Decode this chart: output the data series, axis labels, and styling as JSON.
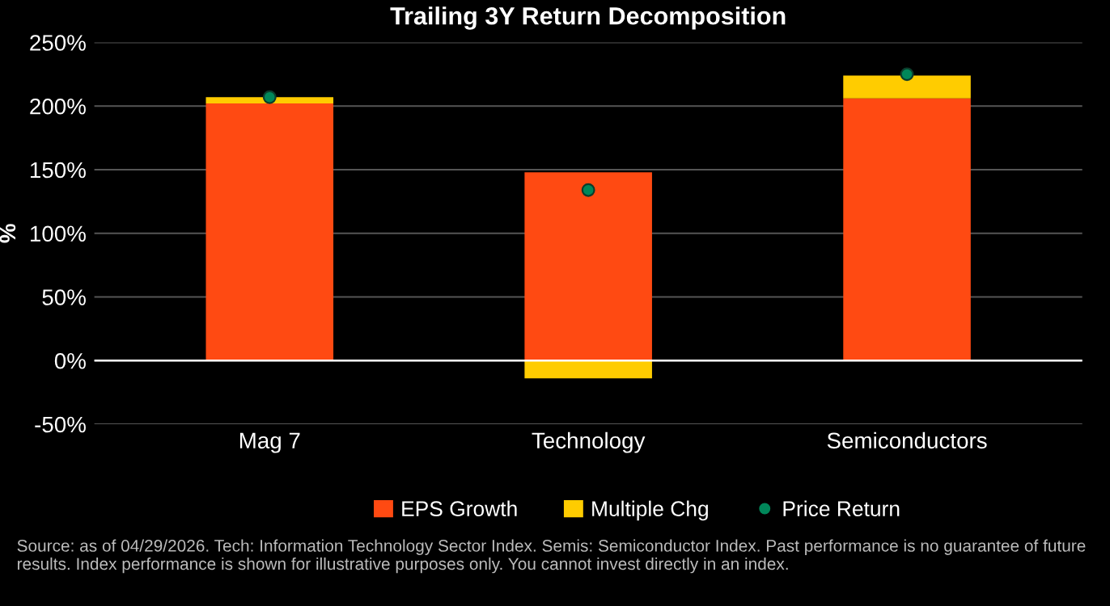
{
  "chart_data": {
    "type": "bar",
    "title": "Trailing 3Y Return Decomposition",
    "ylabel": "%",
    "categories": [
      "Mag 7",
      "Technology",
      "Semiconductors"
    ],
    "stacked": true,
    "series": [
      {
        "name": "EPS Growth",
        "color": "#ff4a12",
        "values": [
          202,
          148,
          206
        ]
      },
      {
        "name": "Multiple Chg",
        "color": "#ffcc00",
        "values": [
          5,
          -14,
          18
        ]
      },
      {
        "name": "Price Return",
        "type": "scatter",
        "color": "#00875a",
        "values": [
          207,
          134,
          225
        ]
      }
    ],
    "ylim": [
      -50,
      250
    ],
    "yticks": [
      {
        "value": -50,
        "label": "-50%"
      },
      {
        "value": 0,
        "label": "0%"
      },
      {
        "value": 50,
        "label": "50%"
      },
      {
        "value": 100,
        "label": "100%"
      },
      {
        "value": 150,
        "label": "150%"
      },
      {
        "value": 200,
        "label": "200%"
      },
      {
        "value": 250,
        "label": "250%"
      }
    ],
    "grid": "y",
    "legend": "bottom",
    "marker": "circle",
    "annotations": [
      "Source: as of 04/29/2026. Tech: Information Technology Sector Index. Semis: Semiconductor Index. Past performance is no guarantee of future results. Index performance is shown for illustrative purposes only. You cannot invest directly in an index."
    ]
  }
}
